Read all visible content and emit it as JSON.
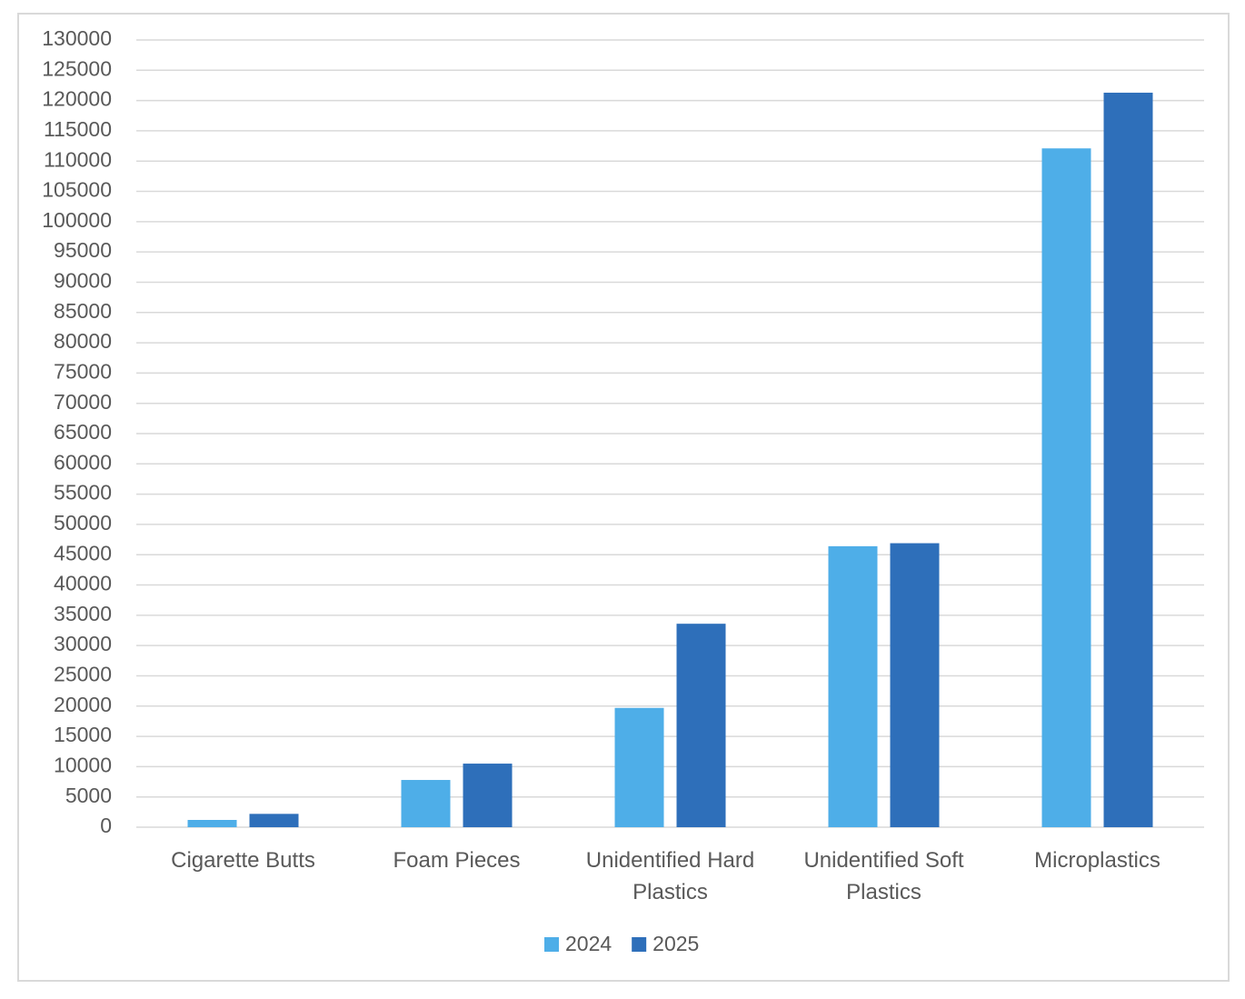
{
  "chart_data": {
    "type": "bar",
    "categories": [
      "Cigarette Butts",
      "Foam Pieces",
      "Unidentified Hard Plastics",
      "Unidentified Soft Plastics",
      "Microplastics"
    ],
    "series": [
      {
        "name": "2024",
        "color": "#4eaee8",
        "values": [
          1200,
          7800,
          19700,
          46400,
          112100
        ]
      },
      {
        "name": "2025",
        "color": "#2e6fba",
        "values": [
          2200,
          10500,
          33600,
          46900,
          121300
        ]
      }
    ],
    "ylim": [
      0,
      130000
    ],
    "yticks": [
      0,
      5000,
      10000,
      15000,
      20000,
      25000,
      30000,
      35000,
      40000,
      45000,
      50000,
      55000,
      60000,
      65000,
      70000,
      75000,
      80000,
      85000,
      90000,
      95000,
      100000,
      105000,
      110000,
      115000,
      120000,
      125000,
      130000
    ],
    "grid": true,
    "legend": "bottom"
  }
}
